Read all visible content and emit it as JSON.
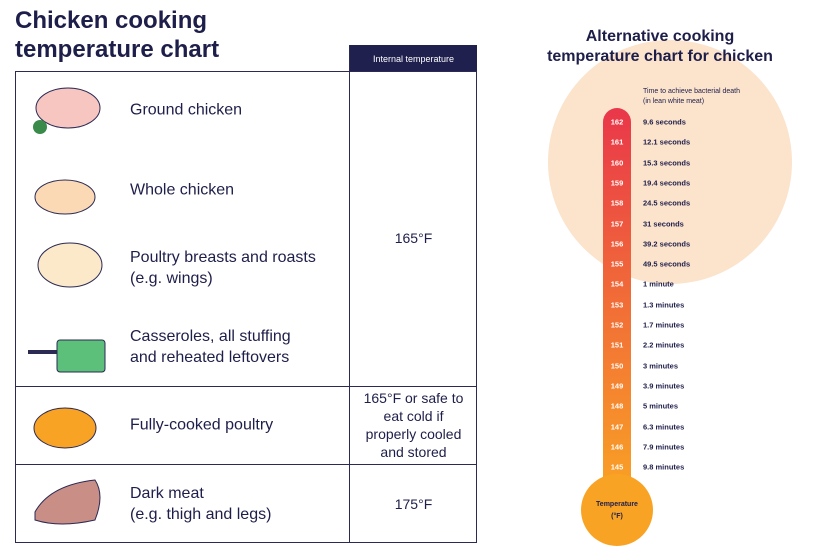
{
  "left": {
    "title": "Chicken cooking\ntemperature chart",
    "column_header": "Internal temperature",
    "groups": [
      {
        "items": [
          "Ground chicken",
          "Whole chicken",
          "Poultry breasts and roasts\n(e.g. wings)",
          "Casseroles, all stuffing\nand reheated leftovers"
        ],
        "temperature": "165°F"
      },
      {
        "items": [
          "Fully-cooked poultry"
        ],
        "temperature": "165°F or safe to\neat cold if\nproperly cooled\nand stored"
      },
      {
        "items": [
          "Dark meat\n(e.g. thigh and legs)"
        ],
        "temperature": "175°F"
      }
    ]
  },
  "right": {
    "title": "Alternative cooking\ntemperature chart for chicken",
    "caption": "Time to achieve bacterial death\n(in lean white meat)",
    "rows": [
      {
        "temperature": "162",
        "time": "9.6 seconds"
      },
      {
        "temperature": "161",
        "time": "12.1 seconds"
      },
      {
        "temperature": "160",
        "time": "15.3 seconds"
      },
      {
        "temperature": "159",
        "time": "19.4 seconds"
      },
      {
        "temperature": "158",
        "time": "24.5 seconds"
      },
      {
        "temperature": "157",
        "time": "31 seconds"
      },
      {
        "temperature": "156",
        "time": "39.2 seconds"
      },
      {
        "temperature": "155",
        "time": "49.5 seconds"
      },
      {
        "temperature": "154",
        "time": "1 minute"
      },
      {
        "temperature": "153",
        "time": "1.3 minutes"
      },
      {
        "temperature": "152",
        "time": "1.7 minutes"
      },
      {
        "temperature": "151",
        "time": "2.2 minutes"
      },
      {
        "temperature": "150",
        "time": "3 minutes"
      },
      {
        "temperature": "149",
        "time": "3.9 minutes"
      },
      {
        "temperature": "148",
        "time": "5 minutes"
      },
      {
        "temperature": "147",
        "time": "6.3 minutes"
      },
      {
        "temperature": "146",
        "time": "7.9 minutes"
      },
      {
        "temperature": "145",
        "time": "9.8 minutes"
      }
    ],
    "bulb_label": "Temperature\n(°F)"
  }
}
